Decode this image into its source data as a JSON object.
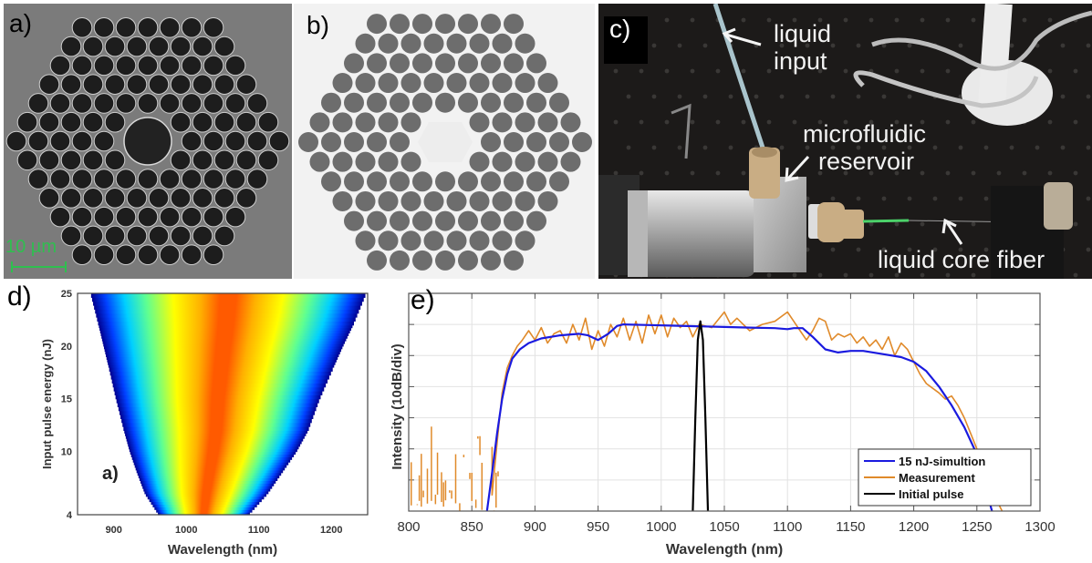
{
  "figure": {
    "panels": [
      {
        "id": "a",
        "label": "a)",
        "type": "SEM micrograph",
        "subject": "hollow-core photonic crystal fiber cross-section",
        "scale_bar": "10 µm",
        "scale_bar_color": "#2fbf4f"
      },
      {
        "id": "b",
        "label": "b)",
        "type": "optical micrograph",
        "subject": "liquid-filled fiber cross-section"
      },
      {
        "id": "c",
        "label": "c)",
        "type": "photograph",
        "subject": "experimental setup",
        "annotations": {
          "liquid_input": [
            "liquid",
            "input"
          ],
          "reservoir": [
            "microfluidic",
            "reservoir"
          ],
          "fiber": "liquid core fiber"
        }
      },
      {
        "id": "d",
        "label": "d)"
      },
      {
        "id": "e",
        "label": "e)"
      }
    ]
  },
  "chart_data": [
    {
      "panel": "d",
      "type": "heatmap",
      "title": "",
      "inset_label": "a)",
      "xlabel": "Wavelength (nm)",
      "ylabel": "Input pulse energy (nJ)",
      "xlim": [
        850,
        1250
      ],
      "ylim": [
        4,
        25
      ],
      "xticks": [
        900,
        1000,
        1100,
        1200
      ],
      "yticks": [
        4,
        10,
        15,
        20,
        25
      ],
      "colormap": "jet",
      "spectral_edges": {
        "energy": [
          4,
          6,
          8,
          10,
          12,
          15,
          18,
          20,
          22,
          25
        ],
        "short_edge_nm": [
          962,
          943,
          932,
          922,
          914,
          903,
          893,
          886,
          879,
          868
        ],
        "long_edge_nm": [
          1086,
          1112,
          1132,
          1152,
          1168,
          1184,
          1203,
          1216,
          1230,
          1248
        ]
      },
      "core_band_nm": [
        [
          1000,
          1062
        ],
        [
          965,
          1110
        ]
      ]
    },
    {
      "panel": "e",
      "type": "line",
      "title": "",
      "xlabel": "Wavelength (nm)",
      "ylabel": "Intensity (10dB/div)",
      "xlim": [
        800,
        1300
      ],
      "ylim": [
        0,
        70
      ],
      "xticks": [
        800,
        850,
        900,
        950,
        1000,
        1050,
        1100,
        1150,
        1200,
        1250,
        1300
      ],
      "y_divisions_dB": 10,
      "grid": true,
      "legend": "bottom-right",
      "series": [
        {
          "name": "15 nJ-simultion",
          "color": "#1a1adf",
          "x": [
            862,
            866,
            870,
            874,
            878,
            882,
            888,
            895,
            905,
            920,
            935,
            942,
            950,
            958,
            965,
            970,
            990,
            1010,
            1030,
            1050,
            1070,
            1090,
            1100,
            1105,
            1112,
            1120,
            1130,
            1140,
            1150,
            1160,
            1175,
            1190,
            1200,
            1210,
            1220,
            1230,
            1240,
            1248,
            1255,
            1262
          ],
          "y": [
            0,
            12,
            25,
            36,
            44,
            49,
            52,
            54,
            55.5,
            56.5,
            57,
            56.5,
            55,
            57,
            59.5,
            60,
            59.8,
            59.6,
            59.4,
            59.2,
            59,
            58.8,
            58.5,
            58.8,
            58.8,
            56,
            52,
            51,
            51.5,
            51.5,
            50.5,
            49.5,
            48,
            45,
            40,
            34,
            27,
            20,
            10,
            0
          ]
        },
        {
          "name": "Measurement",
          "color": "#e08a2a",
          "x": [
            866,
            870,
            874,
            878,
            882,
            886,
            890,
            895,
            900,
            905,
            910,
            915,
            920,
            925,
            930,
            935,
            940,
            945,
            950,
            955,
            960,
            965,
            970,
            975,
            980,
            985,
            990,
            995,
            1000,
            1005,
            1010,
            1015,
            1020,
            1025,
            1030,
            1040,
            1050,
            1055,
            1060,
            1070,
            1080,
            1090,
            1100,
            1105,
            1110,
            1115,
            1120,
            1125,
            1130,
            1135,
            1140,
            1145,
            1150,
            1155,
            1160,
            1165,
            1170,
            1175,
            1180,
            1185,
            1190,
            1195,
            1200,
            1205,
            1210,
            1220,
            1225,
            1230,
            1235,
            1240,
            1245,
            1250,
            1260,
            1270
          ],
          "y": [
            5,
            22,
            38,
            46,
            50,
            53,
            55,
            58,
            55,
            59,
            54,
            57,
            58,
            54,
            60,
            55,
            62,
            52,
            58,
            53,
            60,
            56,
            62,
            55,
            61,
            54,
            63,
            57,
            63,
            56,
            62,
            59,
            61,
            56,
            60,
            59,
            64,
            60,
            62,
            58,
            60,
            61,
            64,
            61,
            58,
            55,
            58,
            62,
            61,
            55,
            57,
            56,
            57,
            54,
            56,
            53,
            55,
            52,
            56,
            50,
            54,
            52,
            48,
            44,
            41,
            38,
            36,
            37,
            34,
            30,
            25,
            20,
            8,
            0
          ]
        },
        {
          "name": "Initial pulse",
          "color": "#000000",
          "x": [
            1025,
            1027,
            1029,
            1031,
            1033,
            1035,
            1037
          ],
          "y": [
            0,
            30,
            55,
            61,
            55,
            30,
            0
          ]
        }
      ],
      "measurement_noise_floor": {
        "x_range": [
          802,
          872
        ],
        "note": "sparse vertical noise segments below ~30 dB"
      }
    }
  ]
}
